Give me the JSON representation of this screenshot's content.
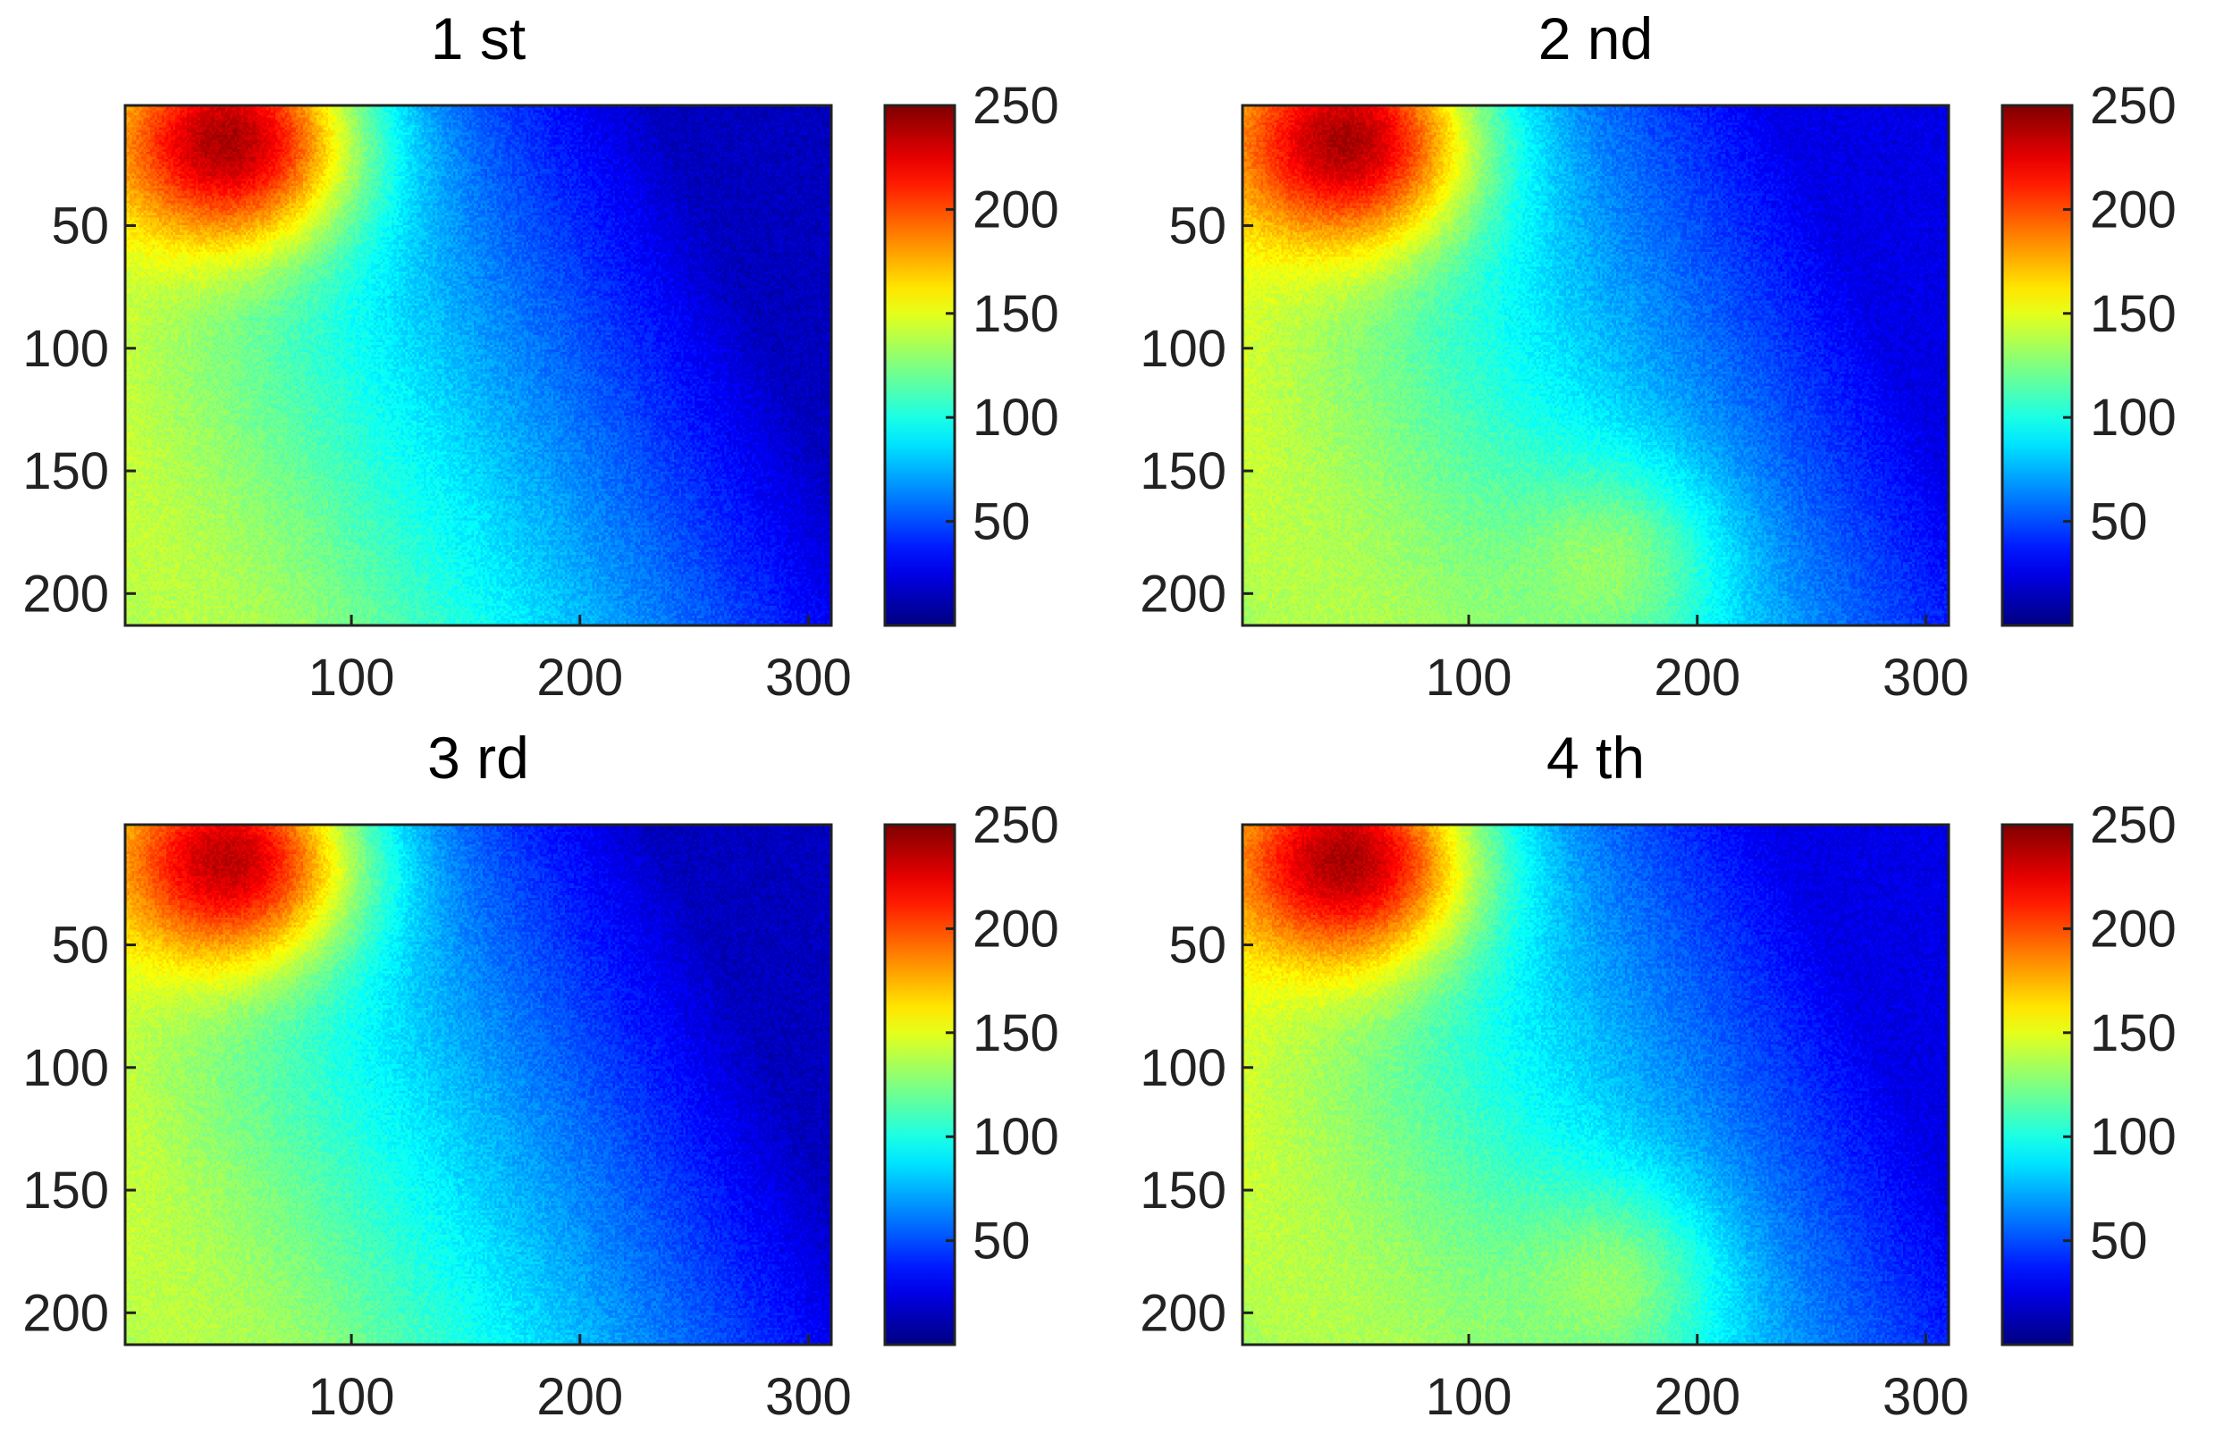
{
  "chart_data": [
    {
      "type": "heatmap",
      "title": "1 st",
      "xlabel": "",
      "ylabel": "",
      "xlim": [
        1,
        310
      ],
      "ylim": [
        1,
        213
      ],
      "y_direction": "reversed",
      "xticks": [
        100,
        200,
        300
      ],
      "yticks": [
        50,
        100,
        150,
        200
      ],
      "colormap": "jet",
      "clim": [
        0,
        250
      ],
      "colorbar_ticks": [
        50,
        100,
        150,
        200,
        250
      ],
      "colorbar_location": "right",
      "grid": false,
      "field": {
        "hotspot_center": [
          45,
          15
        ],
        "hotspot_peak": 240,
        "diagonal_gradient_high": 160,
        "far_corner_value": 15,
        "lower_left_value": 120,
        "lower_middle_bump": 0
      }
    },
    {
      "type": "heatmap",
      "title": "2 nd",
      "xlabel": "",
      "ylabel": "",
      "xlim": [
        1,
        310
      ],
      "ylim": [
        1,
        213
      ],
      "y_direction": "reversed",
      "xticks": [
        100,
        200,
        300
      ],
      "yticks": [
        50,
        100,
        150,
        200
      ],
      "colormap": "jet",
      "clim": [
        0,
        250
      ],
      "colorbar_ticks": [
        50,
        100,
        150,
        200,
        250
      ],
      "colorbar_location": "right",
      "grid": false,
      "field": {
        "hotspot_center": [
          45,
          15
        ],
        "hotspot_peak": 240,
        "diagonal_gradient_high": 165,
        "far_corner_value": 25,
        "lower_left_value": 110,
        "lower_middle_bump": 35
      }
    },
    {
      "type": "heatmap",
      "title": "3 rd",
      "xlabel": "",
      "ylabel": "",
      "xlim": [
        1,
        310
      ],
      "ylim": [
        1,
        213
      ],
      "y_direction": "reversed",
      "xticks": [
        100,
        200,
        300
      ],
      "yticks": [
        50,
        100,
        150,
        200
      ],
      "colormap": "jet",
      "clim": [
        0,
        250
      ],
      "colorbar_ticks": [
        50,
        100,
        150,
        200,
        250
      ],
      "colorbar_location": "right",
      "grid": false,
      "field": {
        "hotspot_center": [
          45,
          15
        ],
        "hotspot_peak": 235,
        "diagonal_gradient_high": 160,
        "far_corner_value": 15,
        "lower_left_value": 120,
        "lower_middle_bump": 0
      }
    },
    {
      "type": "heatmap",
      "title": "4 th",
      "xlabel": "",
      "ylabel": "",
      "xlim": [
        1,
        310
      ],
      "ylim": [
        1,
        213
      ],
      "y_direction": "reversed",
      "xticks": [
        100,
        200,
        300
      ],
      "yticks": [
        50,
        100,
        150,
        200
      ],
      "colormap": "jet",
      "clim": [
        0,
        250
      ],
      "colorbar_ticks": [
        50,
        100,
        150,
        200,
        250
      ],
      "colorbar_location": "right",
      "grid": false,
      "field": {
        "hotspot_center": [
          45,
          15
        ],
        "hotspot_peak": 240,
        "diagonal_gradient_high": 165,
        "far_corner_value": 25,
        "lower_left_value": 110,
        "lower_middle_bump": 35
      }
    }
  ]
}
